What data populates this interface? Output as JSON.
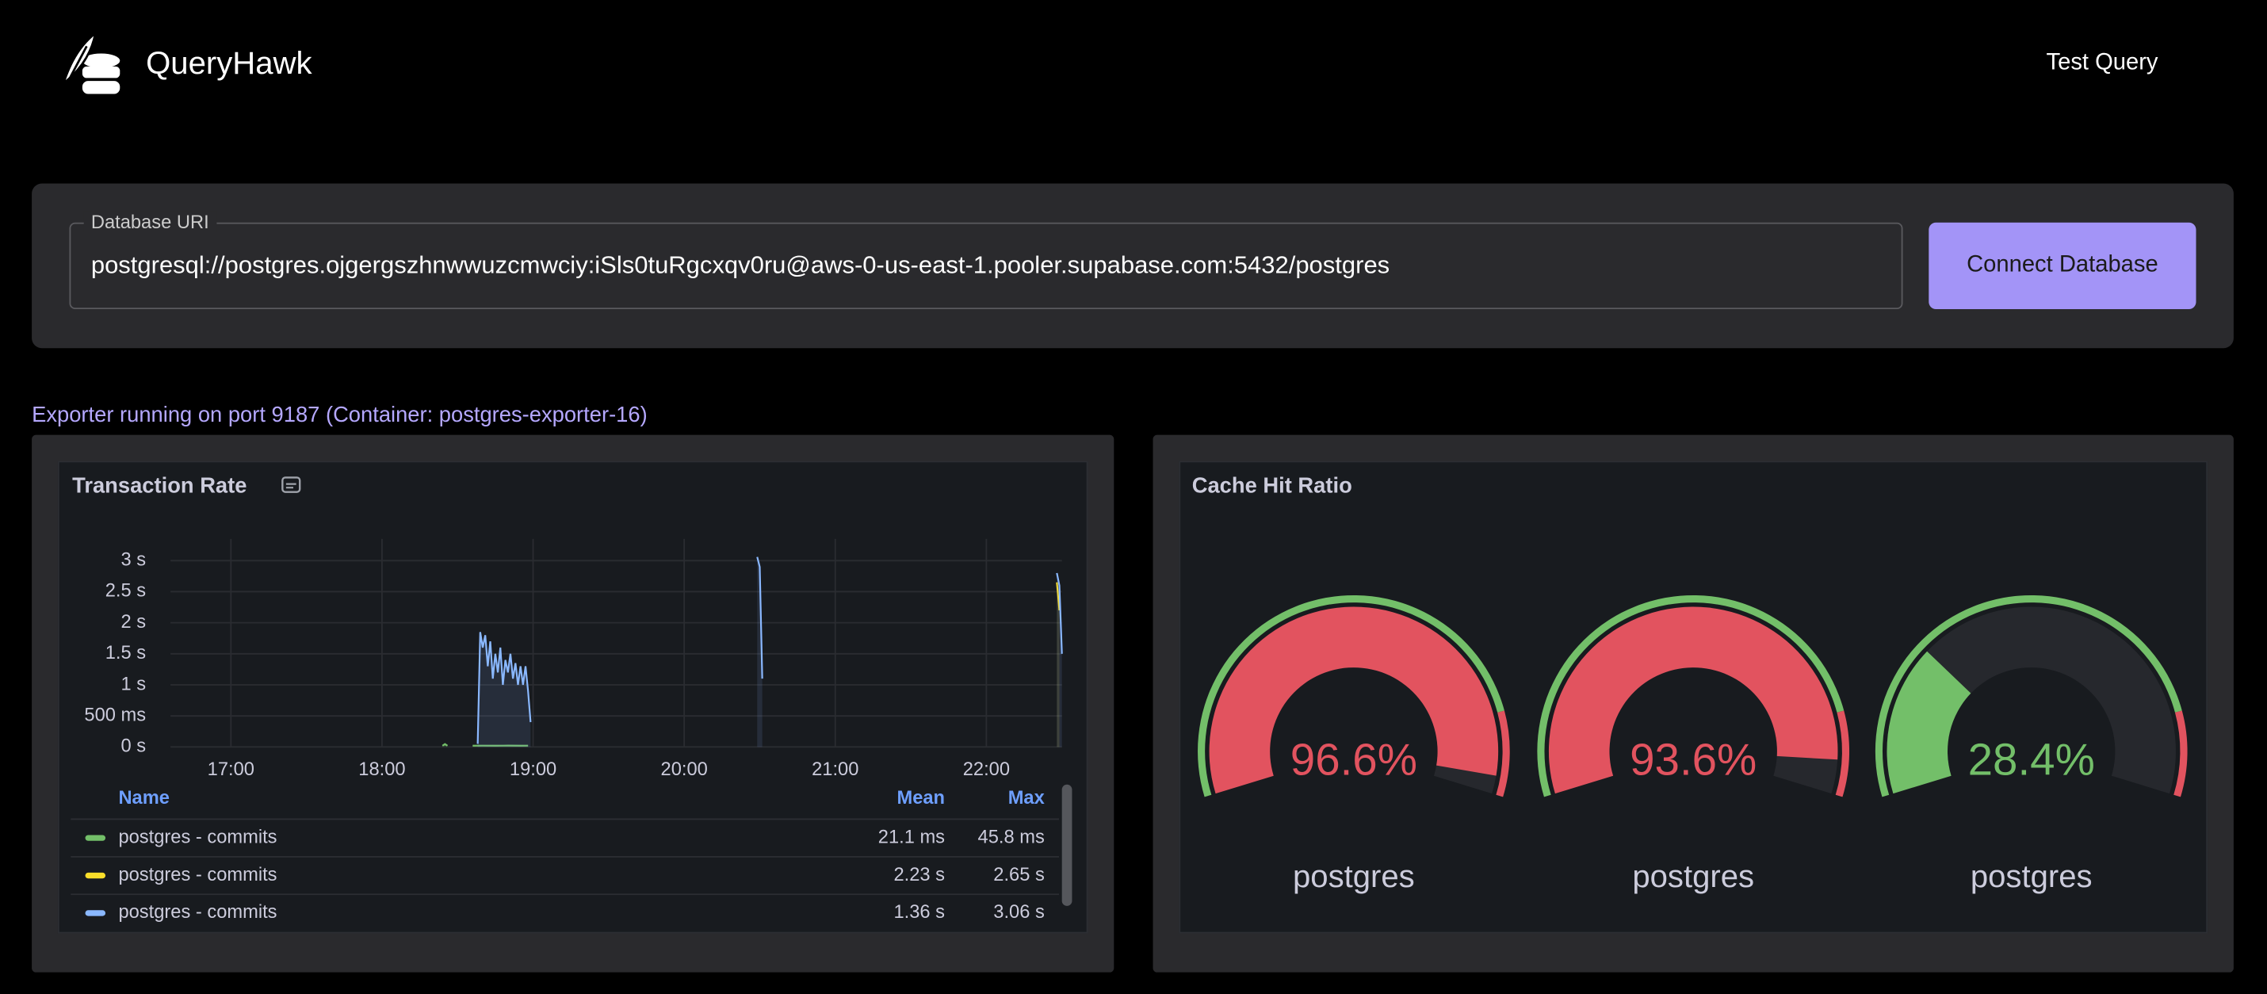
{
  "header": {
    "brand": "QueryHawk",
    "nav_link": "Test Query"
  },
  "connection": {
    "label": "Database URI",
    "uri": "postgresql://postgres.ojgergszhnwwuzcmwciy:iSls0tuRgcxqv0ru@aws-0-us-east-1.pooler.supabase.com:5432/postgres",
    "button": "Connect Database"
  },
  "status": "Exporter running on port 9187 (Container: postgres-exporter-16)",
  "chart_data": [
    {
      "type": "line",
      "title": "Transaction Rate",
      "xlim": [
        "16:36",
        "22:30"
      ],
      "xticks": [
        "17:00",
        "18:00",
        "19:00",
        "20:00",
        "21:00",
        "22:00"
      ],
      "ylim": [
        0,
        3.35
      ],
      "yticks": [
        {
          "value": 0,
          "label": "0 s"
        },
        {
          "value": 0.5,
          "label": "500 ms"
        },
        {
          "value": 1,
          "label": "1 s"
        },
        {
          "value": 1.5,
          "label": "1.5 s"
        },
        {
          "value": 2,
          "label": "2 s"
        },
        {
          "value": 2.5,
          "label": "2.5 s"
        },
        {
          "value": 3,
          "label": "3 s"
        }
      ],
      "grid": true,
      "series": [
        {
          "name": "postgres - commits",
          "color": "#73bf69",
          "x": [
            "18:24",
            "18:25",
            "18:26",
            "18:30",
            "18:36",
            "18:40",
            "18:45",
            "18:50",
            "18:55",
            "18:58"
          ],
          "values": [
            0.02,
            0.046,
            0.02,
            null,
            0.02,
            0.021,
            0.02,
            0.022,
            0.02,
            0.021
          ]
        },
        {
          "name": "postgres - commits",
          "color": "#fade2a",
          "x": [
            "22:28",
            "22:29"
          ],
          "values": [
            2.65,
            2.2
          ]
        },
        {
          "name": "postgres - commits",
          "color": "#8ab8ff",
          "x": [
            "18:38",
            "18:39",
            "18:40",
            "18:41",
            "18:42",
            "18:43",
            "18:44",
            "18:45",
            "18:46",
            "18:47",
            "18:48",
            "18:49",
            "18:50",
            "18:51",
            "18:52",
            "18:53",
            "18:54",
            "18:55",
            "18:56",
            "18:57",
            "18:58",
            "18:59",
            "19:10",
            "20:29",
            "20:30",
            "20:31",
            "21:00",
            "22:28",
            "22:29",
            "22:30"
          ],
          "values": [
            0.05,
            1.85,
            1.6,
            1.8,
            1.3,
            1.7,
            1.1,
            1.5,
            1.2,
            1.6,
            1.0,
            1.4,
            1.2,
            1.5,
            1.1,
            1.35,
            1.0,
            1.3,
            1.0,
            1.3,
            0.9,
            0.4,
            null,
            3.06,
            2.9,
            1.1,
            null,
            2.8,
            2.6,
            1.5
          ]
        }
      ],
      "legend_table": {
        "columns": [
          "Name",
          "Mean",
          "Max"
        ],
        "rows": [
          [
            "21.1 ms",
            "45.8 ms"
          ],
          [
            "2.23 s",
            "2.65 s"
          ],
          [
            "1.36 s",
            "3.06 s"
          ]
        ]
      }
    },
    {
      "type": "gauge",
      "title": "Cache Hit Ratio",
      "categories": [
        "postgres",
        "postgres",
        "postgres"
      ],
      "values": [
        96.6,
        93.6,
        28.4
      ],
      "value_labels": [
        "96.6%",
        "93.6%",
        "28.4%"
      ],
      "ylim": [
        0,
        100
      ],
      "color": "#73bf69",
      "thresholds": [
        {
          "value": 85,
          "color": "#e2535f"
        }
      ]
    }
  ]
}
